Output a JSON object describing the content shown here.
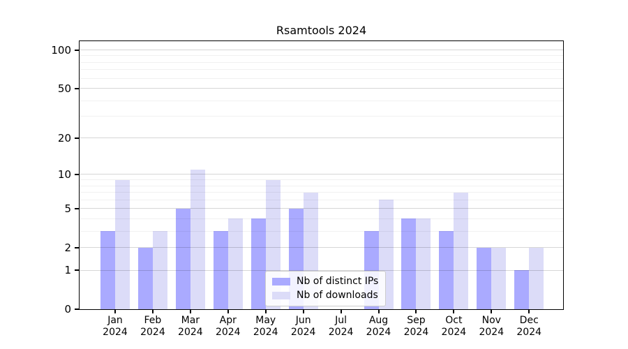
{
  "title": "Rsamtools 2024",
  "colors": {
    "distinct_ips": "#aaaaff",
    "downloads": "#dcdcf8",
    "axis": "#000000",
    "grid_major": "rgba(0,0,0,0.16)",
    "grid_minor": "rgba(0,0,0,0.055)",
    "legend_border": "#cccccc"
  },
  "legend": {
    "items": [
      {
        "label": "Nb of distinct IPs",
        "color_key": "distinct_ips"
      },
      {
        "label": "Nb of downloads",
        "color_key": "downloads"
      }
    ],
    "position": "lower center"
  },
  "chart_data": {
    "type": "bar",
    "title": "Rsamtools 2024",
    "categories": [
      "Jan 2024",
      "Feb 2024",
      "Mar 2024",
      "Apr 2024",
      "May 2024",
      "Jun 2024",
      "Jul 2024",
      "Aug 2024",
      "Sep 2024",
      "Oct 2024",
      "Nov 2024",
      "Dec 2024"
    ],
    "series": [
      {
        "name": "Nb of distinct IPs",
        "color_key": "distinct_ips",
        "values": [
          3,
          2,
          5,
          3,
          4,
          5,
          0,
          3,
          4,
          3,
          2,
          1
        ]
      },
      {
        "name": "Nb of downloads",
        "color_key": "downloads",
        "values": [
          9,
          3,
          11,
          4,
          9,
          7,
          0,
          6,
          4,
          7,
          2,
          2
        ]
      }
    ],
    "xlabel": "",
    "ylabel": "",
    "yscale": "log1p",
    "ylim": [
      0,
      117
    ],
    "yticks_major": [
      0,
      1,
      2,
      5,
      10,
      20,
      50,
      100
    ],
    "yticks_minor": [
      3,
      4,
      6,
      7,
      8,
      9,
      30,
      40,
      60,
      70,
      80,
      90
    ],
    "grid": true,
    "legend_position": "lower center"
  }
}
